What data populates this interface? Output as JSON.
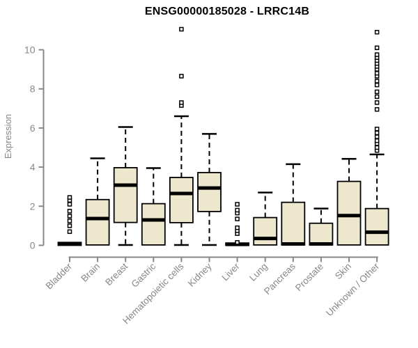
{
  "chart_data": {
    "type": "boxplot",
    "title": "ENSG00000185028 - LRRC14B",
    "ylabel": "Expression",
    "xlabel": "",
    "ylim": [
      0,
      10
    ],
    "yticks": [
      0,
      2,
      4,
      6,
      8,
      10
    ],
    "grid": false,
    "legend": "none",
    "categories": [
      "Bladder",
      "Brain",
      "Breast",
      "Gastric",
      "Hematopoietic cells",
      "Kidney",
      "Liver",
      "Lung",
      "Pancreas",
      "Prostate",
      "Skin",
      "Unknown / Other"
    ],
    "series": [
      {
        "category": "Bladder",
        "q1": 0.0,
        "median": 0.07,
        "q3": 0.15,
        "whisker_low": 0.0,
        "whisker_high": 0.15,
        "outliers": [
          0.7,
          1.0,
          1.25,
          1.5,
          1.75,
          2.1,
          2.3,
          2.45
        ]
      },
      {
        "category": "Brain",
        "q1": 0.02,
        "median": 1.37,
        "q3": 2.34,
        "whisker_low": 0.02,
        "whisker_high": 4.45,
        "outliers": []
      },
      {
        "category": "Breast",
        "q1": 1.17,
        "median": 3.08,
        "q3": 3.97,
        "whisker_low": 0.02,
        "whisker_high": 6.05,
        "outliers": []
      },
      {
        "category": "Gastric",
        "q1": 0.02,
        "median": 1.3,
        "q3": 2.13,
        "whisker_low": 0.02,
        "whisker_high": 3.95,
        "outliers": []
      },
      {
        "category": "Hematopoietic cells",
        "q1": 1.16,
        "median": 2.65,
        "q3": 3.47,
        "whisker_low": 0.02,
        "whisker_high": 6.6,
        "outliers": [
          7.15,
          7.3,
          8.65,
          11.05
        ]
      },
      {
        "category": "Kidney",
        "q1": 1.73,
        "median": 2.93,
        "q3": 3.72,
        "whisker_low": 0.02,
        "whisker_high": 5.7,
        "outliers": []
      },
      {
        "category": "Liver",
        "q1": 0.0,
        "median": 0.05,
        "q3": 0.12,
        "whisker_low": 0.0,
        "whisker_high": 0.12,
        "outliers": [
          0.15,
          0.6,
          0.75,
          0.9,
          1.35,
          1.65,
          1.8,
          2.1
        ]
      },
      {
        "category": "Lung",
        "q1": 0.02,
        "median": 0.35,
        "q3": 1.42,
        "whisker_low": 0.02,
        "whisker_high": 2.7,
        "outliers": []
      },
      {
        "category": "Pancreas",
        "q1": 0.02,
        "median": 0.07,
        "q3": 2.2,
        "whisker_low": 0.02,
        "whisker_high": 4.15,
        "outliers": []
      },
      {
        "category": "Prostate",
        "q1": 0.02,
        "median": 0.07,
        "q3": 1.13,
        "whisker_low": 0.02,
        "whisker_high": 1.88,
        "outliers": []
      },
      {
        "category": "Skin",
        "q1": 0.02,
        "median": 1.52,
        "q3": 3.27,
        "whisker_low": 0.02,
        "whisker_high": 4.42,
        "outliers": []
      },
      {
        "category": "Unknown / Other",
        "q1": 0.02,
        "median": 0.67,
        "q3": 1.88,
        "whisker_low": 0.02,
        "whisker_high": 4.65,
        "outliers": [
          4.85,
          5.0,
          5.2,
          5.35,
          5.55,
          5.75,
          5.95,
          6.95,
          7.3,
          7.6,
          7.85,
          8.2,
          8.4,
          8.65,
          8.8,
          9.0,
          9.15,
          9.3,
          9.45,
          9.6,
          9.75,
          10.1,
          10.9
        ]
      }
    ],
    "colors": {
      "box_fill": "#EDE8CD",
      "box_stroke": "#000000",
      "median": "#000000",
      "whisker": "#000000",
      "outlier_stroke": "#000000",
      "outlier_fill": "#FFFFFF",
      "axis": "#878787",
      "title": "#000000",
      "background": "#FFFFFF"
    }
  }
}
